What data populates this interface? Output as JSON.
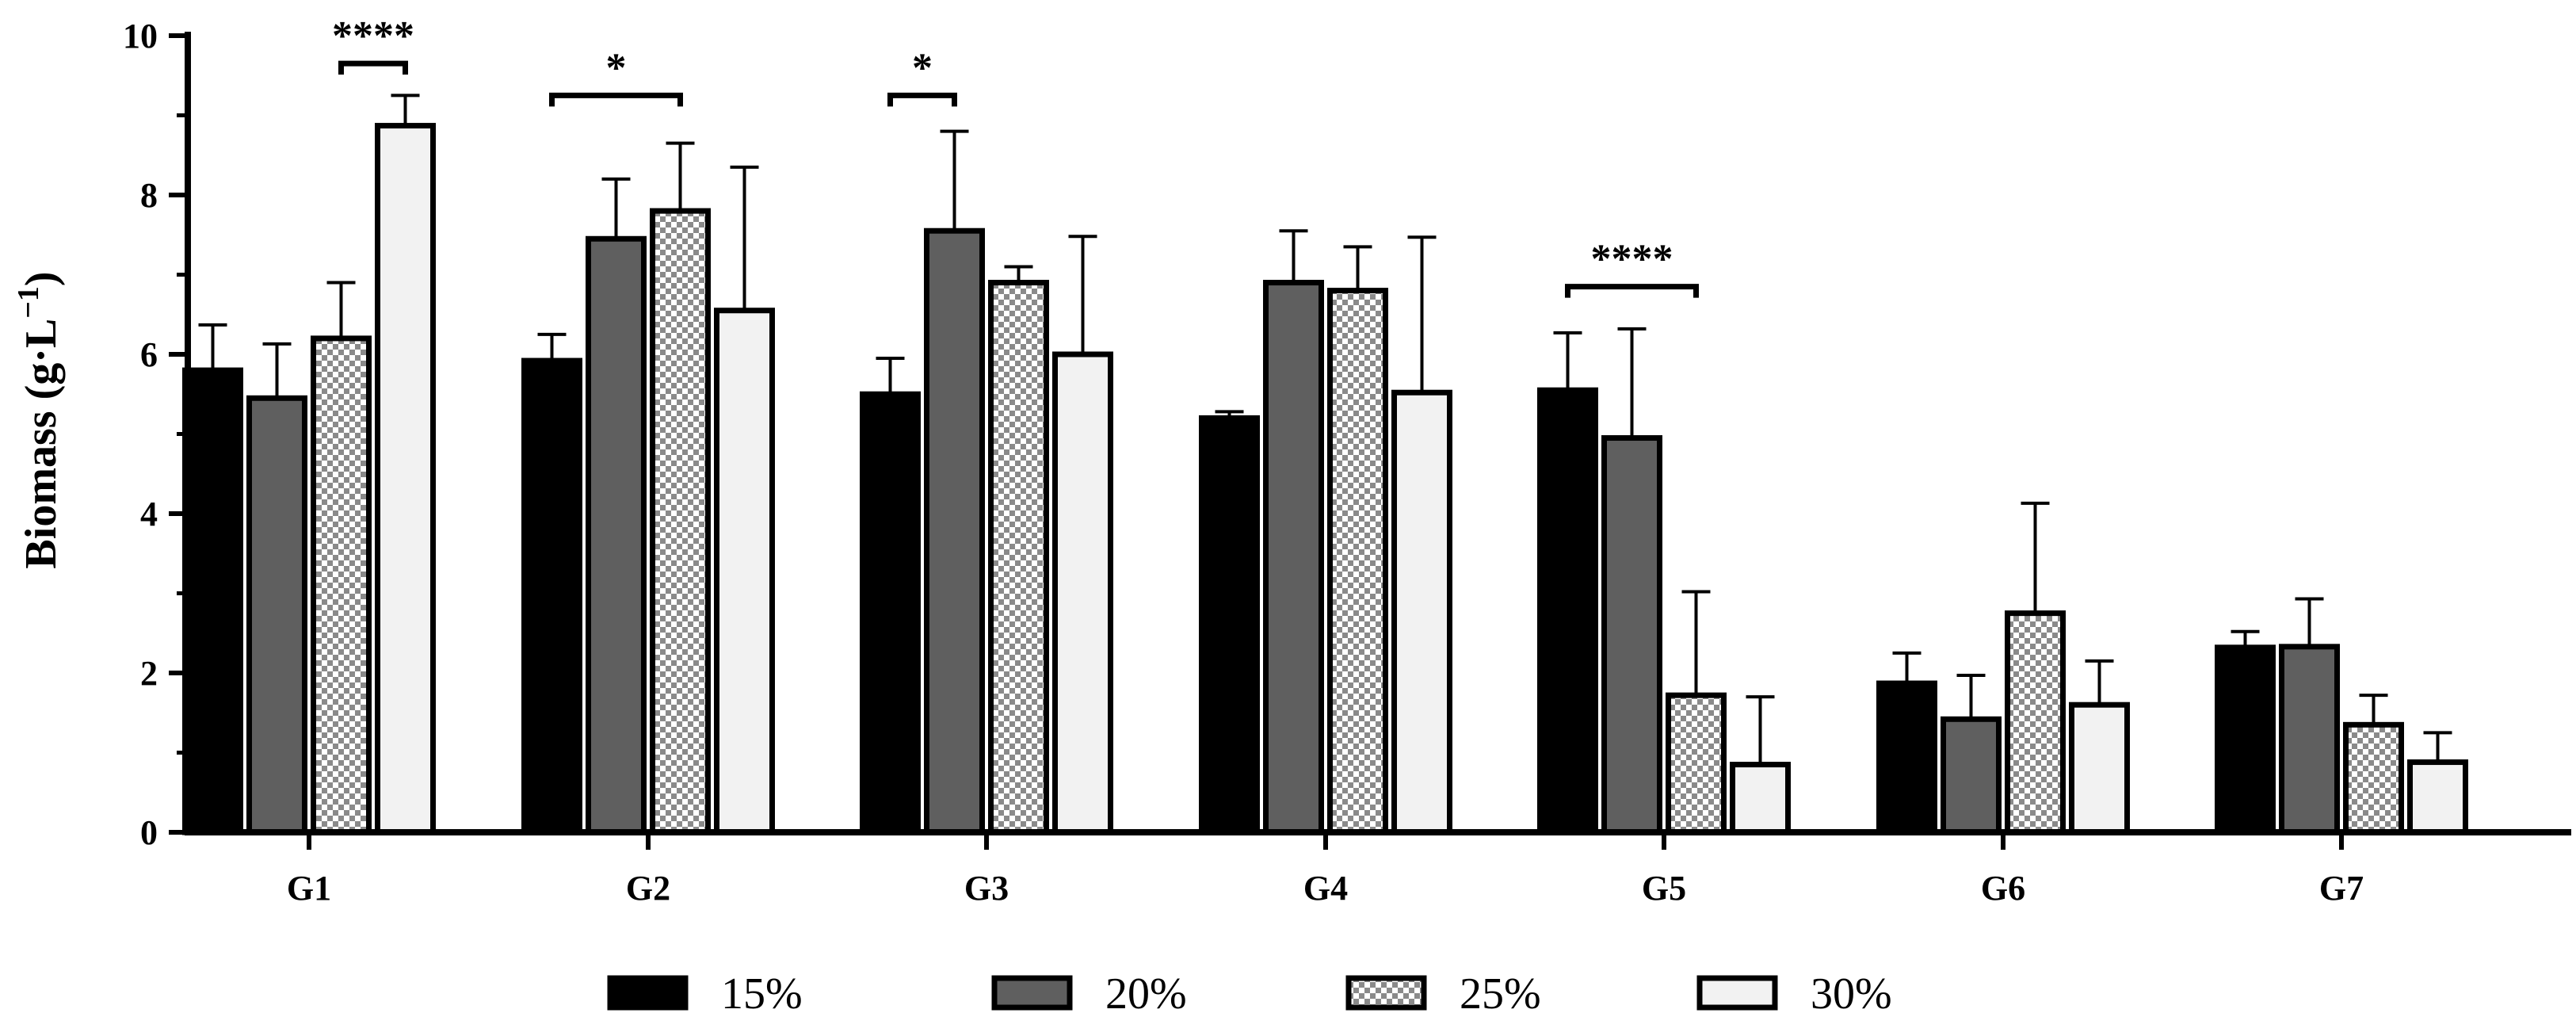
{
  "chart_data": {
    "type": "bar",
    "title": "",
    "xlabel": "",
    "ylabel": "Biomass (g·L",
    "ylabel_sup": "−1",
    "ylabel_close": ")",
    "ylim": [
      0,
      10
    ],
    "yticks": [
      "0",
      "2",
      "4",
      "6",
      "8",
      "10"
    ],
    "categories": [
      "G1",
      "G2",
      "G3",
      "G4",
      "G5",
      "G6",
      "G7"
    ],
    "legend_position": "bottom",
    "series": [
      {
        "name": "15%",
        "fill": "#000000",
        "pattern": "solid",
        "values": [
          5.8,
          5.92,
          5.5,
          5.2,
          5.55,
          1.87,
          2.32
        ],
        "errors": [
          0.57,
          0.33,
          0.45,
          0.08,
          0.72,
          0.38,
          0.2
        ]
      },
      {
        "name": "20%",
        "fill": "#5f5f5f",
        "pattern": "solid",
        "values": [
          5.45,
          7.45,
          7.55,
          6.9,
          4.95,
          1.42,
          2.33
        ],
        "errors": [
          0.68,
          0.75,
          1.25,
          0.65,
          1.37,
          0.55,
          0.6
        ]
      },
      {
        "name": "25%",
        "fill": "#ffffff",
        "pattern": "checker",
        "values": [
          6.2,
          7.8,
          6.9,
          6.8,
          1.72,
          2.75,
          1.35
        ],
        "errors": [
          0.7,
          0.85,
          0.2,
          0.55,
          1.3,
          1.38,
          0.37
        ]
      },
      {
        "name": "30%",
        "fill": "#f2f2f2",
        "pattern": "solid",
        "values": [
          8.87,
          6.55,
          6.0,
          5.52,
          0.85,
          1.6,
          0.88
        ],
        "errors": [
          0.38,
          1.8,
          1.48,
          1.95,
          0.85,
          0.55,
          0.37
        ]
      }
    ],
    "significance": [
      {
        "category": "G1",
        "from_series": 2,
        "to_series": 3,
        "label": "****",
        "y": 9.65
      },
      {
        "category": "G2",
        "from_series": 0,
        "to_series": 2,
        "label": "*",
        "y": 9.25
      },
      {
        "category": "G3",
        "from_series": 0,
        "to_series": 1,
        "label": "*",
        "y": 9.25
      },
      {
        "category": "G5",
        "from_series": 0,
        "to_series": 2,
        "label": "****",
        "y": 6.85
      }
    ]
  }
}
